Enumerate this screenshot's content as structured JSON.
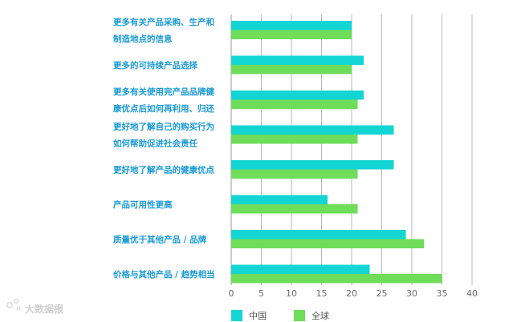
{
  "chart_data": {
    "type": "bar",
    "orientation": "horizontal",
    "categories": [
      [
        "更多有关产品采购、生产和",
        "制造地点的信息"
      ],
      [
        "更多的可持续产品选择"
      ],
      [
        "更多有关使用完产品品牌健",
        "康优点后如何再利用、归还"
      ],
      [
        "更好地了解自己的购买行为",
        "如何帮助促进社会责任"
      ],
      [
        "更好地了解产品的健康优点"
      ],
      [
        "产品可用性更高"
      ],
      [
        "质量优于其他产品 / 品牌"
      ],
      [
        "价格与其他产品 / 趋势相当"
      ]
    ],
    "series": [
      {
        "name": "中国",
        "color": "#13d5d3",
        "values": [
          20,
          22,
          22,
          27,
          27,
          16,
          29,
          23
        ]
      },
      {
        "name": "全球",
        "color": "#6fdc5a",
        "values": [
          20,
          20,
          21,
          21,
          21,
          21,
          32,
          35
        ]
      }
    ],
    "xlim": [
      0,
      40
    ],
    "xticks": [
      0,
      5,
      10,
      15,
      20,
      25,
      30,
      35,
      40
    ],
    "grid": true,
    "legend_position": "bottom",
    "title": "",
    "xlabel": "",
    "ylabel": ""
  },
  "watermark": {
    "text": "大数据报",
    "icon": "logo-icon"
  }
}
